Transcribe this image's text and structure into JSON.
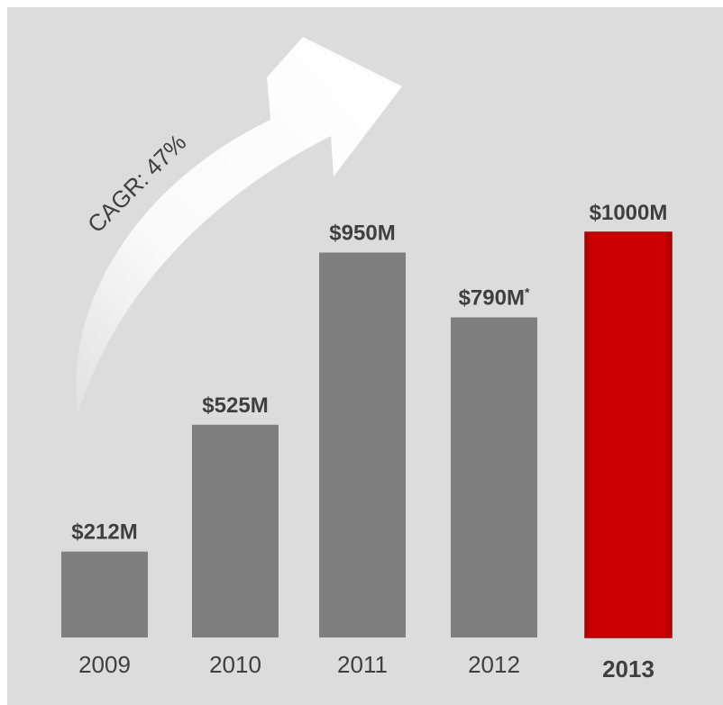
{
  "chart_data": {
    "type": "bar",
    "categories": [
      "2009",
      "2010",
      "2011",
      "2012",
      "2013"
    ],
    "values": [
      212,
      525,
      950,
      790,
      1000
    ],
    "value_labels": [
      "$212M",
      "$525M",
      "$950M",
      "$790M",
      "$1000M"
    ],
    "footnote_marks": [
      "",
      "",
      "",
      "*",
      ""
    ],
    "highlight_index": 4,
    "ylim": [
      0,
      1070
    ],
    "annotation": "CAGR: 47%",
    "colors": {
      "bar": "#7f7f7f",
      "highlight_bar": "#cc0000",
      "highlight_edge": "#a80000",
      "text": "#3f3f3f",
      "background": "#dcdcdc",
      "arrow": "#ffffff"
    },
    "grid": false
  }
}
